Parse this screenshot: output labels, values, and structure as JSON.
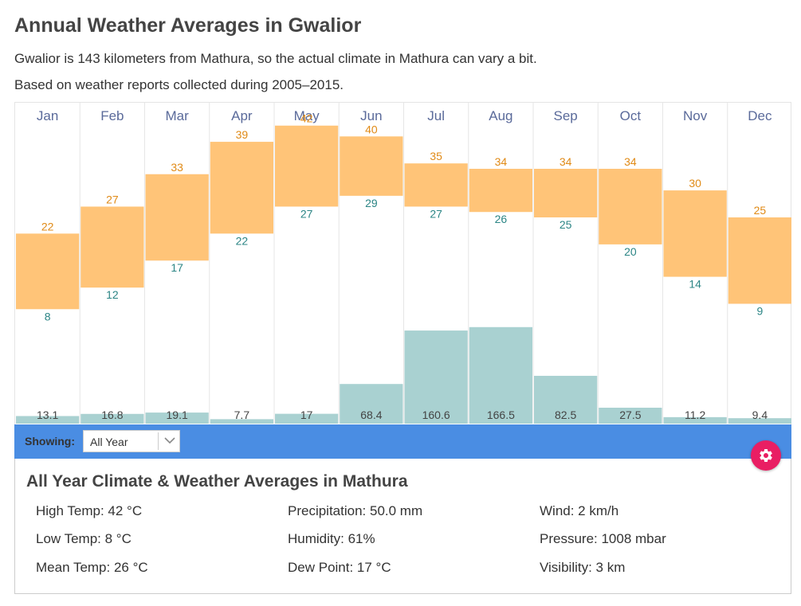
{
  "page": {
    "title": "Annual Weather Averages in Gwalior",
    "subtitle1": "Gwalior is 143 kilometers from Mathura, so the actual climate in Mathura can vary a bit.",
    "subtitle2": "Based on weather reports collected during 2005–2015."
  },
  "chart_data": {
    "type": "bar",
    "categories": [
      "Jan",
      "Feb",
      "Mar",
      "Apr",
      "May",
      "Jun",
      "Jul",
      "Aug",
      "Sep",
      "Oct",
      "Nov",
      "Dec"
    ],
    "series": [
      {
        "values": [
          22,
          27,
          33,
          39,
          42,
          40,
          35,
          34,
          34,
          34,
          30,
          25
        ]
      },
      {
        "values": [
          8,
          12,
          17,
          22,
          27,
          29,
          27,
          26,
          25,
          20,
          14,
          9
        ]
      },
      {
        "values": [
          13.1,
          16.8,
          19.1,
          7.7,
          17,
          68.4,
          160.6,
          166.5,
          82.5,
          27.5,
          11.2,
          9.4
        ]
      }
    ],
    "colors": {
      "temperature_band": "#ffc478",
      "high_label": "#e08a16",
      "low_label": "#2b8585",
      "precipitation": "#a9d1d1",
      "month_label": "#5a6a9a"
    }
  },
  "toolbar": {
    "showing_label": "Showing:",
    "period_value": "All Year",
    "chevron_icon": "chevron-down-icon",
    "settings_icon": "gear-icon",
    "color": "#4a8de3"
  },
  "summary": {
    "title": "All Year Climate & Weather Averages in Mathura",
    "high_temp": "High Temp: 42 °C",
    "low_temp": "Low Temp: 8 °C",
    "mean_temp": "Mean Temp: 26 °C",
    "precipitation": "Precipitation: 50.0 mm",
    "humidity": "Humidity: 61%",
    "dew_point": "Dew Point: 17 °C",
    "wind": "Wind: 2 km/h",
    "pressure": "Pressure: 1008 mbar",
    "visibility": "Visibility: 3 km"
  }
}
